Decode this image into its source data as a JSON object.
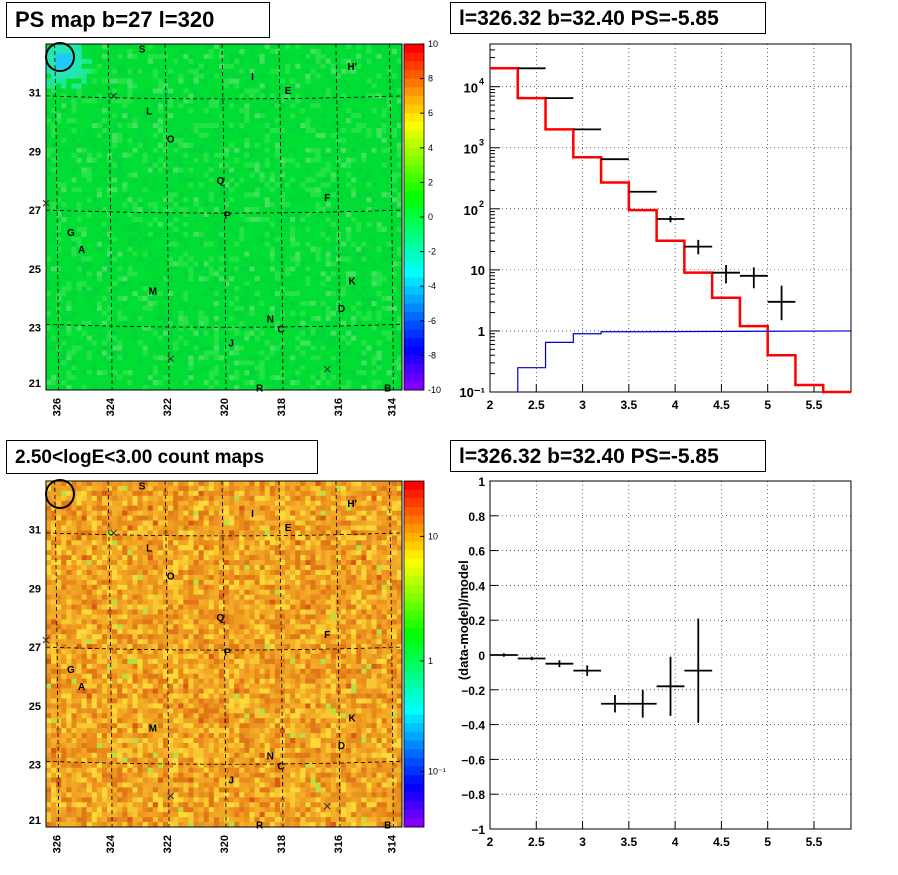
{
  "titles": {
    "ps_map": "PS map b=27 l=320",
    "spectrum": "l=326.32 b=32.40 PS=-5.85",
    "count_map": "2.50<logE<3.00 count maps",
    "residual": "l=326.32 b=32.40 PS=-5.85"
  },
  "colors": {
    "ps_map_bg": "#00dd33",
    "count_map_bg": "#f2a020",
    "model_line": "#ff0000",
    "source_line": "#0000cc",
    "data_points": "#000000"
  },
  "source_labels": [
    "S",
    "I",
    "H'",
    "E",
    "L",
    "O",
    "Q",
    "F",
    "P",
    "G",
    "A",
    "K",
    "M",
    "D",
    "N",
    "C",
    "J",
    "R",
    "B"
  ],
  "chart_data": [
    {
      "type": "heatmap",
      "name": "PS map",
      "title": "PS map b=27 l=320",
      "x_ticks": [
        "326",
        "324",
        "322",
        "320",
        "318",
        "316",
        "314"
      ],
      "y_ticks": [
        "31",
        "29",
        "27",
        "25",
        "23",
        "21"
      ],
      "colorbar_ticks": [
        "10",
        "8",
        "6",
        "4",
        "2",
        "0",
        "-2",
        "-4",
        "-6",
        "-8",
        "-10"
      ],
      "colorbar_range": [
        -10,
        10
      ],
      "background_value": 0.5
    },
    {
      "type": "line",
      "name": "spectrum",
      "title": "l=326.32 b=32.40 PS=-5.85",
      "yscale": "log",
      "xlim": [
        2,
        5.9
      ],
      "ylim": [
        0.1,
        50000
      ],
      "x_ticks": [
        "2",
        "2.5",
        "3",
        "3.5",
        "4",
        "4.5",
        "5",
        "5.5"
      ],
      "y_ticks": [
        "10",
        "1",
        "10⁻¹"
      ],
      "y_tick_pow": [
        "4",
        "3",
        "2"
      ],
      "model_edges": [
        2.0,
        2.3,
        2.6,
        2.9,
        3.2,
        3.5,
        3.8,
        4.1,
        4.4,
        4.7,
        5.0,
        5.3,
        5.6,
        5.9
      ],
      "model_values": [
        20000,
        6500,
        2000,
        700,
        270,
        95,
        30,
        9,
        3.5,
        1.2,
        0.4,
        0.13,
        0.08
      ],
      "source_edges": [
        2.3,
        2.6,
        2.9,
        3.2,
        3.5
      ],
      "source_values": [
        0.25,
        0.65,
        0.9,
        0.97
      ],
      "source_flat_y": 1,
      "data_x": [
        2.45,
        2.75,
        3.05,
        3.35,
        3.65,
        3.95,
        4.25,
        4.55,
        4.85,
        5.15
      ],
      "data_y": [
        20000,
        6500,
        2000,
        650,
        190,
        68,
        24,
        9,
        8,
        3
      ],
      "data_err_lo": [
        0,
        0,
        0,
        0,
        0,
        8,
        6,
        3,
        3,
        1.5
      ],
      "data_err_hi": [
        0,
        0,
        0,
        0,
        0,
        8,
        7,
        3,
        3,
        2.5
      ],
      "data_x_halfwidth": 0.15
    },
    {
      "type": "heatmap",
      "name": "count maps",
      "title": "2.50<logE<3.00 count maps",
      "x_ticks": [
        "326",
        "324",
        "322",
        "320",
        "318",
        "316",
        "314"
      ],
      "y_ticks": [
        "31",
        "29",
        "27",
        "25",
        "23",
        "21"
      ],
      "colorbar_ticks": [
        "10",
        "1",
        "10⁻¹"
      ]
    },
    {
      "type": "scatter",
      "name": "residual",
      "title": "l=326.32 b=32.40 PS=-5.85",
      "ylabel": "(data-model)/model",
      "xlim": [
        2,
        5.9
      ],
      "ylim": [
        -1,
        1
      ],
      "x_ticks": [
        "2",
        "2.5",
        "3",
        "3.5",
        "4",
        "4.5",
        "5",
        "5.5"
      ],
      "y_ticks": [
        "1",
        "0.8",
        "0.6",
        "0.4",
        "0.2",
        "0",
        "−0.2",
        "−0.4",
        "−0.6",
        "−0.8",
        "−1"
      ],
      "x": [
        2.15,
        2.45,
        2.75,
        3.05,
        3.35,
        3.65,
        3.95,
        4.25
      ],
      "y": [
        0.0,
        -0.02,
        -0.05,
        -0.09,
        -0.28,
        -0.28,
        -0.18,
        -0.09
      ],
      "y_err": [
        0.01,
        0.01,
        0.02,
        0.03,
        0.05,
        0.08,
        0.17,
        0.3
      ],
      "x_halfwidth": 0.15
    }
  ]
}
